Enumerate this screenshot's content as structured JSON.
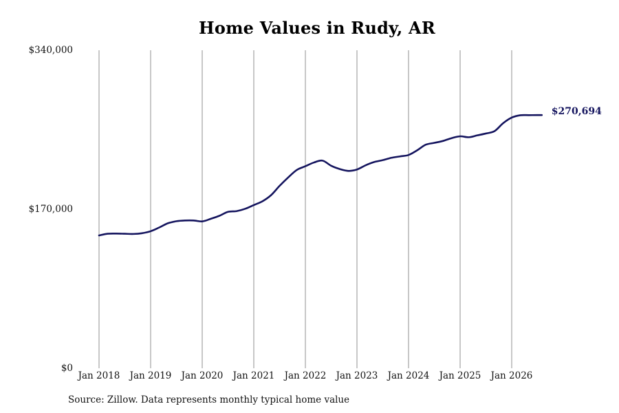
{
  "colors": {
    "line": "#14145e",
    "grid": "#8f8f8f",
    "label": "#14145e"
  },
  "footer": {
    "source": "Source: Zillow. Data represents monthly typical home value"
  },
  "chart_data": {
    "type": "line",
    "title": "Home Values in Rudy, AR",
    "xlabel": "",
    "ylabel": "",
    "ylim": [
      0,
      340000
    ],
    "xlim": [
      "2018-01",
      "2026-09"
    ],
    "yticks": [
      0,
      170000,
      340000
    ],
    "ytick_labels": [
      "$0",
      "$170,000",
      "$340,000"
    ],
    "xticks": [
      "2018-01",
      "2019-01",
      "2020-01",
      "2021-01",
      "2022-01",
      "2023-01",
      "2024-01",
      "2025-01",
      "2026-01"
    ],
    "xtick_labels": [
      "Jan 2018",
      "Jan 2019",
      "Jan 2020",
      "Jan 2021",
      "Jan 2022",
      "Jan 2023",
      "Jan 2024",
      "Jan 2025",
      "Jan 2026"
    ],
    "grid": "vertical",
    "end_label": "$270,694",
    "series": [
      {
        "x": [
          "2018-01",
          "2018-03",
          "2018-05",
          "2018-07",
          "2018-09",
          "2018-11",
          "2019-01",
          "2019-03",
          "2019-05",
          "2019-07",
          "2019-09",
          "2019-11",
          "2020-01",
          "2020-03",
          "2020-05",
          "2020-07",
          "2020-09",
          "2020-11",
          "2021-01",
          "2021-03",
          "2021-05",
          "2021-07",
          "2021-09",
          "2021-11",
          "2022-01",
          "2022-03",
          "2022-05",
          "2022-07",
          "2022-09",
          "2022-11",
          "2023-01",
          "2023-03",
          "2023-05",
          "2023-07",
          "2023-09",
          "2023-11",
          "2024-01",
          "2024-03",
          "2024-05",
          "2024-07",
          "2024-09",
          "2024-11",
          "2025-01",
          "2025-03",
          "2025-05",
          "2025-07",
          "2025-09",
          "2025-11",
          "2026-01",
          "2026-03",
          "2026-05",
          "2026-07",
          "2026-08"
        ],
        "values": [
          142000,
          143800,
          144000,
          143800,
          143600,
          144400,
          146500,
          150500,
          155000,
          157200,
          158000,
          158000,
          157000,
          159800,
          163000,
          167200,
          168000,
          170500,
          174500,
          178500,
          185000,
          195000,
          204000,
          212000,
          216000,
          220000,
          222000,
          216500,
          213000,
          211000,
          212500,
          217000,
          220500,
          222500,
          225000,
          226500,
          228000,
          233000,
          239000,
          241000,
          243000,
          246000,
          248000,
          247000,
          249000,
          251000,
          253500,
          262000,
          268000,
          270500,
          270600,
          270700,
          270694
        ]
      }
    ]
  }
}
